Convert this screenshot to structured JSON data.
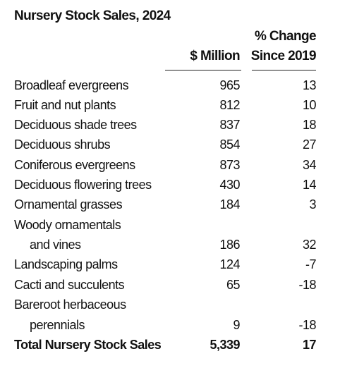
{
  "title": "Nursery Stock Sales, 2024",
  "headers": {
    "million": "$ Million",
    "pct_line1": "% Change",
    "pct_line2": "Since 2019"
  },
  "rows": [
    {
      "label": "Broadleaf evergreens",
      "million": "965",
      "pct": "13"
    },
    {
      "label": "Fruit and nut plants",
      "million": "812",
      "pct": "10"
    },
    {
      "label": "Deciduous shade trees",
      "million": "837",
      "pct": "18"
    },
    {
      "label": "Deciduous shrubs",
      "million": "854",
      "pct": "27"
    },
    {
      "label": "Coniferous evergreens",
      "million": "873",
      "pct": "34"
    },
    {
      "label": "Deciduous flowering trees",
      "million": "430",
      "pct": "14"
    },
    {
      "label": "Ornamental grasses",
      "million": "184",
      "pct": "3"
    },
    {
      "label": "Woody ornamentals",
      "label_cont": "and vines",
      "million": "186",
      "pct": "32"
    },
    {
      "label": "Landscaping palms",
      "million": "124",
      "pct": "-7"
    },
    {
      "label": "Cacti and succulents",
      "million": "65",
      "pct": "-18"
    },
    {
      "label": "Bareroot herbaceous",
      "label_cont": "perennials",
      "million": "9",
      "pct": "-18"
    }
  ],
  "total": {
    "label": "Total Nursery Stock Sales",
    "million": "5,339",
    "pct": "17"
  }
}
